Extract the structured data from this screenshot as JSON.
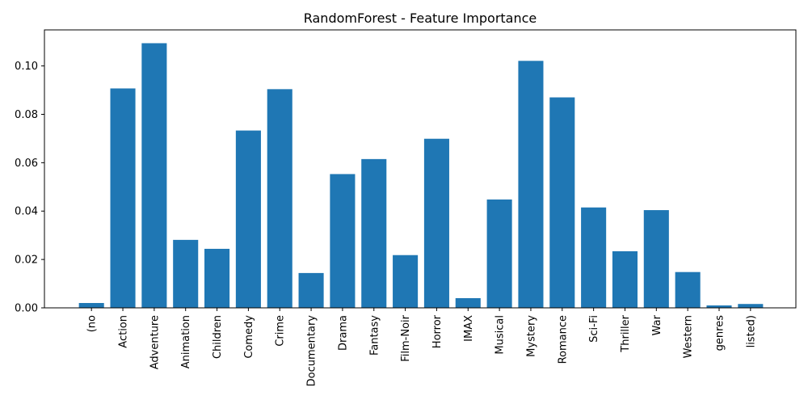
{
  "chart_data": {
    "type": "bar",
    "title": "RandomForest - Feature Importance",
    "xlabel": "",
    "ylabel": "",
    "categories": [
      "(no",
      "Action",
      "Adventure",
      "Animation",
      "Children",
      "Comedy",
      "Crime",
      "Documentary",
      "Drama",
      "Fantasy",
      "Film-Noir",
      "Horror",
      "IMAX",
      "Musical",
      "Mystery",
      "Romance",
      "Sci-Fi",
      "Thriller",
      "War",
      "Western",
      "genres",
      "listed)"
    ],
    "values": [
      0.002,
      0.0907,
      0.1094,
      0.0281,
      0.0244,
      0.0733,
      0.0904,
      0.0144,
      0.0553,
      0.0615,
      0.0218,
      0.0699,
      0.004,
      0.0448,
      0.1021,
      0.087,
      0.0415,
      0.0234,
      0.0404,
      0.0148,
      0.001,
      0.0016
    ],
    "yticks": [
      "0.00",
      "0.02",
      "0.04",
      "0.06",
      "0.08",
      "0.10"
    ],
    "yticks_values": [
      0,
      0.02,
      0.04,
      0.06,
      0.08,
      0.1
    ],
    "ylim": [
      0,
      0.1149
    ],
    "bar_color": "#1f77b4",
    "grid": false,
    "legend": "none"
  }
}
